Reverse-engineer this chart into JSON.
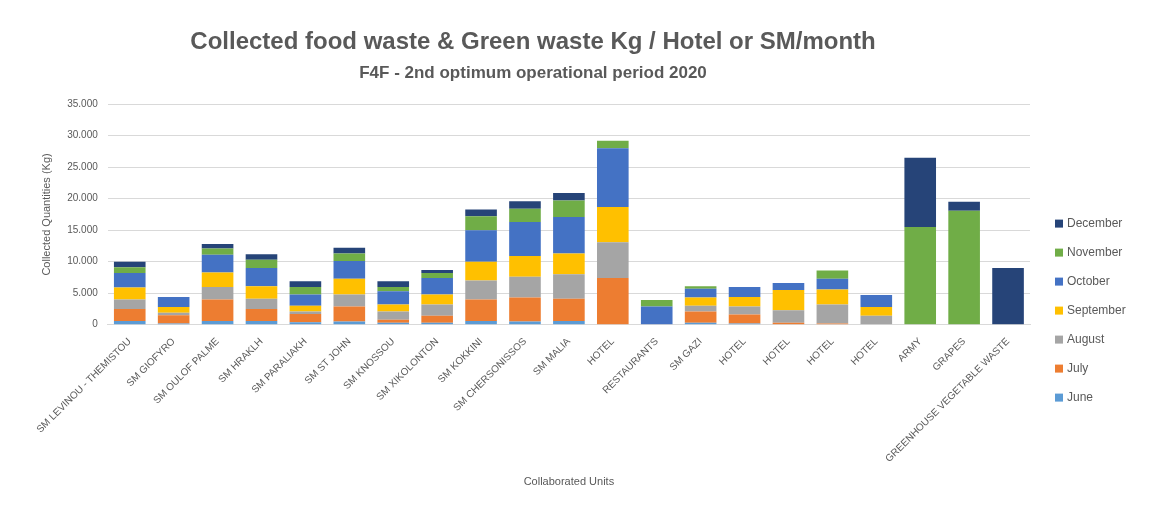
{
  "chart_data": {
    "type": "bar",
    "title": "Collected food waste & Green waste Kg / Hotel or SM/month",
    "subtitle": "F4F - 2nd optimum operational period 2020",
    "xlabel": "Collaborated Units",
    "ylabel": "Collected Quantities (Kg)",
    "categories": [
      "SM LEVINOU - THEMISTOU",
      "SM GIOFYRO",
      "SM OULOF PALME",
      "SM HRAKLH",
      "SM PARALIAKH",
      "SM ST JOHN",
      "SM KNOSSOU",
      "SM XIKOLONTON",
      "SM KOKKINI",
      "SM CHERSONISSOS",
      "SM MALIA",
      "HOTEL",
      "RESTAURANTS",
      "SM GAZI",
      "HOTEL",
      "HOTEL",
      "HOTEL",
      "HOTEL",
      "ARMY",
      "GRAPES",
      "GREENHOUSE VEGETABLE WASTE"
    ],
    "series": [
      {
        "name": "June",
        "color": "#5b9bd5",
        "values": [
          600,
          200,
          600,
          600,
          400,
          500,
          300,
          300,
          600,
          500,
          600,
          null,
          null,
          300,
          200,
          null,
          null,
          null,
          null,
          null,
          null
        ]
      },
      {
        "name": "July",
        "color": "#ed7d31",
        "values": [
          1900,
          1300,
          3400,
          1900,
          1300,
          2400,
          500,
          1100,
          3400,
          3800,
          3500,
          7400,
          null,
          1800,
          1400,
          300,
          200,
          null,
          null,
          null,
          null
        ]
      },
      {
        "name": "August",
        "color": "#a5a5a5",
        "values": [
          1500,
          400,
          2000,
          1600,
          400,
          1900,
          1300,
          1800,
          3000,
          3300,
          3900,
          5700,
          null,
          900,
          1300,
          2000,
          3000,
          1400,
          null,
          null,
          null
        ]
      },
      {
        "name": "September",
        "color": "#ffc000",
        "values": [
          1900,
          900,
          2300,
          2000,
          900,
          2500,
          1100,
          1600,
          3000,
          3300,
          3300,
          5600,
          null,
          1300,
          1500,
          3200,
          2400,
          1400,
          null,
          null,
          null
        ]
      },
      {
        "name": "October",
        "color": "#4472c4",
        "values": [
          2300,
          1600,
          2800,
          2900,
          1800,
          2800,
          2100,
          2600,
          5000,
          5400,
          5800,
          9300,
          2900,
          1400,
          1600,
          1100,
          1700,
          1900,
          null,
          null,
          null
        ]
      },
      {
        "name": "November",
        "color": "#70ad47",
        "values": [
          900,
          null,
          1000,
          1300,
          1200,
          1200,
          700,
          800,
          2200,
          2100,
          2600,
          1200,
          1000,
          400,
          null,
          null,
          1300,
          null,
          15500,
          18100,
          null
        ]
      },
      {
        "name": "December",
        "color": "#264478",
        "values": [
          900,
          null,
          700,
          900,
          900,
          900,
          900,
          500,
          1100,
          1200,
          1200,
          null,
          null,
          null,
          null,
          null,
          null,
          null,
          11000,
          1400,
          9000
        ]
      }
    ],
    "stacked": true,
    "ylim": [
      0,
      35000
    ],
    "yticks": [
      0,
      {
        "value": 5000,
        "label": "5.000"
      },
      {
        "value": 10000,
        "label": "10.000"
      },
      {
        "value": 15000,
        "label": "15.000"
      },
      {
        "value": 20000,
        "label": "20.000"
      },
      {
        "value": 25000,
        "label": "25.000"
      },
      {
        "value": 30000,
        "label": "30.000"
      },
      {
        "value": 35000,
        "label": "35.000"
      }
    ],
    "grid": "y",
    "legend": "right"
  }
}
